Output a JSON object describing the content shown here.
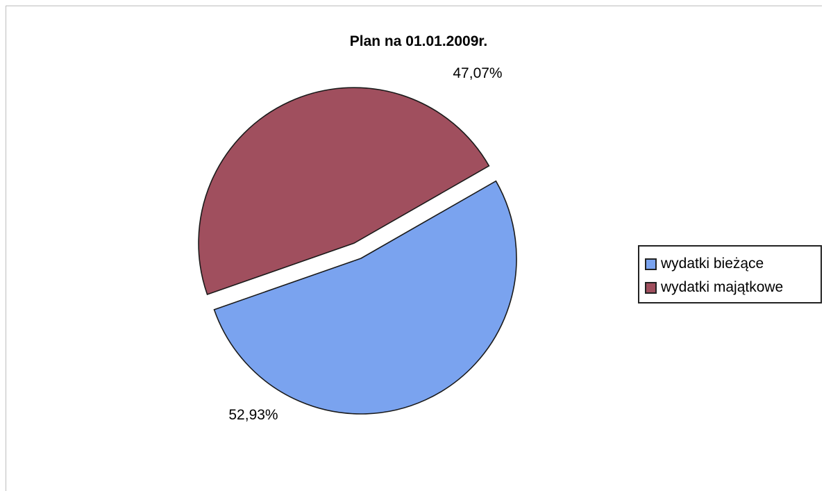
{
  "chart_data": {
    "type": "pie",
    "title": "Plan na 01.01.2009r.",
    "categories": [
      "wydatki bieżące",
      "wydatki majątkowe"
    ],
    "values": [
      52.93,
      47.07
    ],
    "data_labels": [
      "52,93%",
      "47,07%"
    ],
    "colors": [
      "#7aa3ef",
      "#a04f5e"
    ],
    "exploded": [
      false,
      true
    ],
    "legend_position": "right"
  }
}
